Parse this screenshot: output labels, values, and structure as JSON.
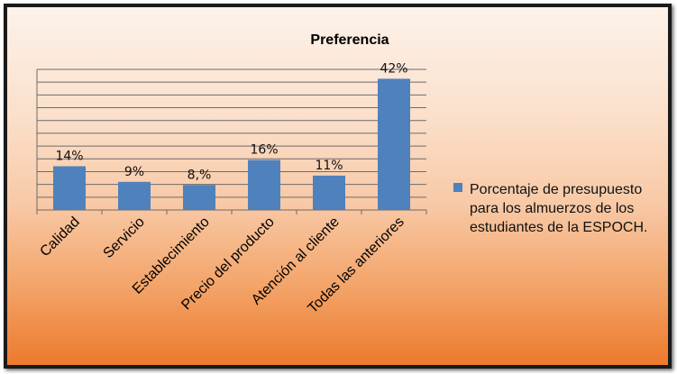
{
  "chart_data": {
    "type": "bar",
    "title": "Preferencia",
    "categories": [
      "Calidad",
      "Servicio",
      "Establecimiento",
      "Precio del producto",
      "Atención al cliente",
      "Todas las anteriores"
    ],
    "values": [
      14,
      9,
      8,
      16,
      11,
      42
    ],
    "data_labels": [
      "14%",
      "9%",
      "8,%",
      "16%",
      "11%",
      "42%"
    ],
    "series": [
      {
        "name": "Porcentaje de presupuesto para los almuerzos de los estudiantes de la ESPOCH.",
        "values": [
          14,
          9,
          8,
          16,
          11,
          42
        ]
      }
    ],
    "legend_lines": [
      "Porcentaje de presupuesto",
      "para los almuerzos de los",
      "estudiantes de la ESPOCH."
    ],
    "ylim": [
      0,
      45
    ],
    "grid": true,
    "legend_position": "right",
    "bar_color": "#4f81bd"
  }
}
